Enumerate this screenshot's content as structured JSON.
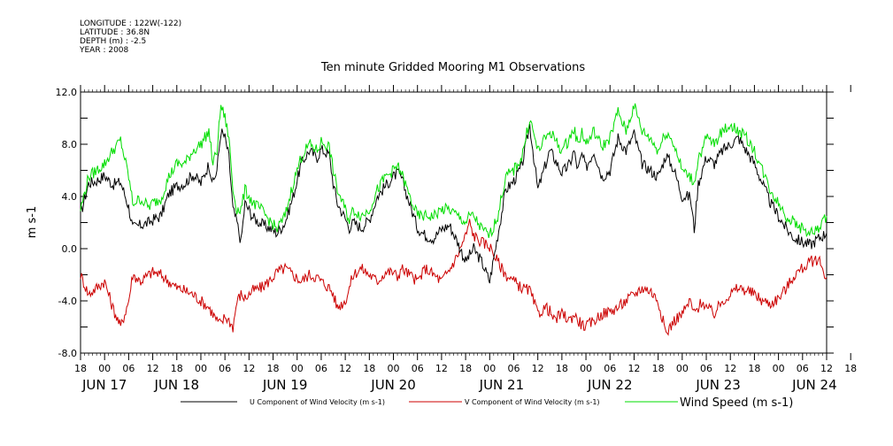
{
  "metadata": {
    "longitude": "LONGITUDE : 122W(-122)",
    "latitude": "LATITUDE : 36.8N",
    "depth": "DEPTH (m) : -2.5",
    "year": "YEAR : 2008"
  },
  "chart_data": {
    "type": "line",
    "title": "Ten minute Gridded Mooring M1 Observations",
    "xlabel": "",
    "ylabel": "m s-1",
    "ylim": [
      -8.0,
      12.0
    ],
    "yticks": [
      "12.0",
      "8.0",
      "4.0",
      "0.0",
      "-4.0",
      "-8.0"
    ],
    "x_range_hours": [
      0,
      186
    ],
    "x_start": "JUN 16 18:00",
    "x_tick_labels": [
      "18",
      "00",
      "06",
      "12",
      "18",
      "00",
      "06",
      "12",
      "18",
      "00",
      "06",
      "12",
      "18",
      "00",
      "06",
      "12",
      "18",
      "00",
      "06",
      "12",
      "18",
      "00",
      "06",
      "12",
      "18",
      "00",
      "06",
      "12",
      "18",
      "00",
      "06",
      "12",
      "18"
    ],
    "date_labels": [
      "JUN 17",
      "JUN 18",
      "JUN 19",
      "JUN 20",
      "JUN 21",
      "JUN 22",
      "JUN 23",
      "JUN 24"
    ],
    "date_label_hours": [
      6,
      24,
      51,
      78,
      105,
      132,
      159,
      183
    ],
    "series": [
      {
        "name": "U Component of Wind Velocity (m s-1)",
        "color": "#000000",
        "x": [
          0,
          2,
          4,
          6,
          8,
          10,
          12,
          13,
          15,
          17,
          18,
          20,
          22,
          24,
          26,
          28,
          30,
          32,
          33,
          34,
          35,
          36,
          37,
          38,
          39,
          40,
          41,
          43,
          45,
          47,
          49,
          51,
          53,
          55,
          57,
          59,
          60,
          62,
          63,
          64,
          66,
          67,
          68,
          70,
          72,
          74,
          76,
          78,
          79,
          80,
          82,
          84,
          86,
          88,
          90,
          92,
          94,
          96,
          97,
          98,
          100,
          102,
          104,
          106,
          108,
          110,
          112,
          114,
          116,
          117,
          118,
          120,
          122,
          123,
          124,
          125,
          126,
          128,
          130,
          132,
          134,
          136,
          138,
          140,
          142,
          144,
          146,
          148,
          150,
          152,
          153,
          154,
          155,
          156,
          158,
          160,
          162,
          164,
          166,
          168,
          170,
          172,
          174,
          176,
          178,
          180,
          182,
          184,
          186
        ],
        "y": [
          2.6,
          5.0,
          5.2,
          5.6,
          4.9,
          5.1,
          3.2,
          1.6,
          1.8,
          2.0,
          2.2,
          2.5,
          4.2,
          4.8,
          5.0,
          5.7,
          5.0,
          6.5,
          5.0,
          6.0,
          9.0,
          8.5,
          7.0,
          3.0,
          2.0,
          0.5,
          3.5,
          2.4,
          1.9,
          1.6,
          1.2,
          2.0,
          4.0,
          6.5,
          7.5,
          7.0,
          7.6,
          7.2,
          5.0,
          3.5,
          2.3,
          1.6,
          2.0,
          1.6,
          2.2,
          4.0,
          4.8,
          5.5,
          5.8,
          5.4,
          3.5,
          1.6,
          1.0,
          0.8,
          1.5,
          1.8,
          0.5,
          -1.0,
          -0.5,
          0.0,
          -1.0,
          -2.5,
          1.0,
          4.5,
          5.2,
          6.3,
          9.5,
          4.5,
          6.5,
          7.5,
          7.0,
          5.8,
          6.5,
          7.5,
          6.0,
          7.2,
          6.2,
          7.5,
          5.5,
          6.0,
          8.5,
          7.5,
          8.8,
          6.5,
          6.0,
          5.5,
          7.2,
          6.0,
          4.0,
          4.0,
          1.5,
          5.0,
          6.0,
          7.0,
          6.5,
          7.5,
          8.0,
          8.5,
          7.5,
          6.5,
          5.0,
          3.5,
          2.5,
          1.5,
          0.8,
          0.5,
          0.3,
          0.8,
          1.2
        ]
      },
      {
        "name": "V Component of Wind Velocity (m s-1)",
        "color": "#cc0000",
        "x": [
          0,
          2,
          4,
          6,
          8,
          10,
          12,
          13,
          15,
          17,
          18,
          20,
          22,
          24,
          26,
          28,
          30,
          32,
          33,
          34,
          35,
          36,
          37,
          38,
          39,
          40,
          41,
          43,
          45,
          47,
          49,
          51,
          53,
          55,
          57,
          59,
          60,
          62,
          63,
          64,
          66,
          67,
          68,
          70,
          72,
          74,
          76,
          78,
          79,
          80,
          82,
          84,
          86,
          88,
          90,
          92,
          94,
          96,
          97,
          98,
          100,
          102,
          104,
          106,
          108,
          110,
          112,
          114,
          116,
          117,
          118,
          120,
          122,
          123,
          124,
          125,
          126,
          128,
          130,
          132,
          134,
          136,
          138,
          140,
          142,
          144,
          146,
          148,
          150,
          152,
          153,
          154,
          155,
          156,
          158,
          160,
          162,
          164,
          166,
          168,
          170,
          172,
          174,
          176,
          178,
          180,
          182,
          184,
          186
        ],
        "y": [
          -2.0,
          -3.5,
          -3.0,
          -2.5,
          -4.5,
          -6.0,
          -4.0,
          -2.0,
          -2.5,
          -2.0,
          -1.8,
          -2.0,
          -2.5,
          -3.0,
          -3.2,
          -3.5,
          -4.0,
          -4.5,
          -5.0,
          -5.5,
          -5.8,
          -5.2,
          -5.5,
          -6.0,
          -4.0,
          -3.5,
          -3.8,
          -3.2,
          -3.0,
          -2.5,
          -1.8,
          -1.5,
          -2.0,
          -2.5,
          -2.0,
          -2.2,
          -2.5,
          -3.0,
          -3.5,
          -4.5,
          -4.0,
          -3.0,
          -2.0,
          -1.5,
          -2.0,
          -2.5,
          -1.8,
          -1.8,
          -2.2,
          -1.5,
          -2.0,
          -2.5,
          -1.5,
          -2.0,
          -2.5,
          -1.6,
          -0.5,
          1.0,
          2.0,
          1.0,
          0.5,
          0.2,
          -1.0,
          -2.0,
          -2.5,
          -3.0,
          -3.2,
          -5.0,
          -4.5,
          -4.8,
          -5.5,
          -5.0,
          -5.5,
          -5.0,
          -5.5,
          -5.8,
          -6.0,
          -5.5,
          -5.0,
          -4.8,
          -4.5,
          -4.0,
          -3.5,
          -3.0,
          -3.2,
          -4.0,
          -6.5,
          -5.5,
          -5.0,
          -4.0,
          -5.0,
          -4.5,
          -4.0,
          -4.5,
          -5.0,
          -4.0,
          -3.5,
          -3.0,
          -3.2,
          -3.5,
          -4.0,
          -4.2,
          -3.8,
          -3.0,
          -2.0,
          -1.5,
          -1.0,
          -0.8,
          -2.2
        ]
      },
      {
        "name": "Wind Speed (m s-1)",
        "color": "#00dd00",
        "x": [
          0,
          2,
          4,
          6,
          8,
          10,
          12,
          13,
          15,
          17,
          18,
          20,
          22,
          24,
          26,
          28,
          30,
          32,
          33,
          34,
          35,
          36,
          37,
          38,
          39,
          40,
          41,
          43,
          45,
          47,
          49,
          51,
          53,
          55,
          57,
          59,
          60,
          62,
          63,
          64,
          66,
          67,
          68,
          70,
          72,
          74,
          76,
          78,
          79,
          80,
          82,
          84,
          86,
          88,
          90,
          92,
          94,
          96,
          97,
          98,
          100,
          102,
          104,
          106,
          108,
          110,
          112,
          114,
          116,
          117,
          118,
          120,
          122,
          123,
          124,
          125,
          126,
          128,
          130,
          132,
          134,
          136,
          138,
          140,
          142,
          144,
          146,
          148,
          150,
          152,
          153,
          154,
          155,
          156,
          158,
          160,
          162,
          164,
          166,
          168,
          170,
          172,
          174,
          176,
          178,
          180,
          182,
          184,
          186
        ],
        "y": [
          3.0,
          5.5,
          6.0,
          6.5,
          7.5,
          8.3,
          5.5,
          3.5,
          3.8,
          3.2,
          3.5,
          3.8,
          5.5,
          6.5,
          6.5,
          7.5,
          8.0,
          9.0,
          6.5,
          7.5,
          11.0,
          10.0,
          8.5,
          4.5,
          3.0,
          3.0,
          4.5,
          3.5,
          3.0,
          2.2,
          1.5,
          2.5,
          5.0,
          7.0,
          8.0,
          7.5,
          8.2,
          7.8,
          6.0,
          4.5,
          3.0,
          2.2,
          3.0,
          2.5,
          3.0,
          4.5,
          5.5,
          6.0,
          6.3,
          5.8,
          4.0,
          2.5,
          2.5,
          2.5,
          3.0,
          3.0,
          2.5,
          2.0,
          2.5,
          2.5,
          1.5,
          1.0,
          2.5,
          5.5,
          6.0,
          7.0,
          10.0,
          7.5,
          8.5,
          9.0,
          8.5,
          7.5,
          8.5,
          9.2,
          8.0,
          9.0,
          8.0,
          9.0,
          7.8,
          8.5,
          10.5,
          9.0,
          11.0,
          9.0,
          8.5,
          7.5,
          9.0,
          8.0,
          6.0,
          5.5,
          5.0,
          7.0,
          7.5,
          8.5,
          8.0,
          9.0,
          9.5,
          9.0,
          8.5,
          7.5,
          6.0,
          4.5,
          3.5,
          2.5,
          2.0,
          1.5,
          1.2,
          1.5,
          2.5
        ]
      }
    ]
  }
}
